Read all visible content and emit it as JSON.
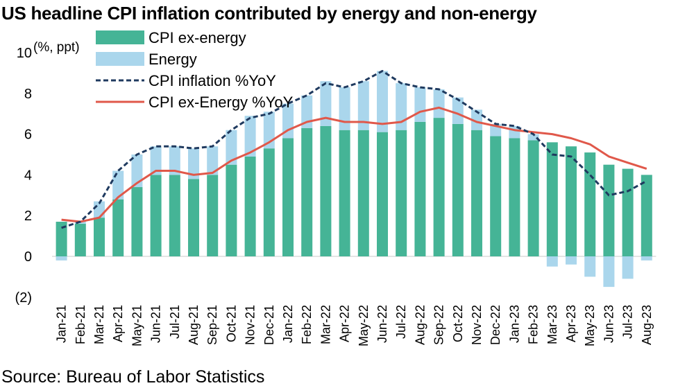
{
  "chart_data": {
    "type": "bar",
    "title": "US headline CPI inflation contributed by energy and non-energy",
    "ylabel": "(%, ppt)",
    "xlabel": "",
    "ylim": [
      -2,
      10
    ],
    "yticks": [
      -2,
      0,
      2,
      4,
      6,
      8,
      10
    ],
    "ytick_labels": [
      "(2)",
      "0",
      "2",
      "4",
      "6",
      "8",
      "10"
    ],
    "stacked": true,
    "grid": false,
    "legend_position": "top-left",
    "colors": {
      "ex_energy": "#45b496",
      "energy": "#aad6ec",
      "cpi_line": "#1f3a5f",
      "ex_energy_line": "#e0584a"
    },
    "categories": [
      "Jan-21",
      "Feb-21",
      "Mar-21",
      "Apr-21",
      "May-21",
      "Jun-21",
      "Jul-21",
      "Aug-21",
      "Sep-21",
      "Oct-21",
      "Nov-21",
      "Dec-21",
      "Jan-22",
      "Feb-22",
      "Mar-22",
      "Apr-22",
      "May-22",
      "Jun-22",
      "Jul-22",
      "Aug-22",
      "Sep-22",
      "Oct-22",
      "Nov-22",
      "Dec-22",
      "Jan-23",
      "Feb-23",
      "Mar-23",
      "Apr-23",
      "May-23",
      "Jun-23",
      "Jul-23",
      "Aug-23"
    ],
    "series": [
      {
        "name": "CPI ex-energy",
        "kind": "bar",
        "values": [
          1.7,
          1.6,
          1.9,
          2.8,
          3.4,
          4.0,
          4.0,
          3.8,
          4.0,
          4.5,
          4.9,
          5.3,
          5.8,
          6.3,
          6.4,
          6.2,
          6.2,
          6.1,
          6.2,
          6.6,
          6.8,
          6.5,
          6.2,
          5.9,
          5.8,
          5.7,
          5.6,
          5.4,
          5.1,
          4.5,
          4.3,
          4.0
        ]
      },
      {
        "name": "Energy",
        "kind": "bar",
        "values": [
          -0.2,
          0.1,
          0.8,
          1.4,
          1.6,
          1.4,
          1.4,
          1.5,
          1.4,
          1.7,
          2.0,
          1.8,
          1.7,
          1.6,
          2.2,
          2.1,
          2.4,
          3.0,
          2.3,
          1.7,
          1.4,
          1.3,
          1.0,
          0.6,
          0.6,
          0.3,
          -0.5,
          -0.4,
          -1.0,
          -1.5,
          -1.1,
          -0.2
        ]
      },
      {
        "name": "CPI inflation %YoY",
        "kind": "line",
        "style": "dashed",
        "values": [
          1.4,
          1.7,
          2.6,
          4.2,
          5.0,
          5.4,
          5.4,
          5.3,
          5.4,
          6.2,
          6.8,
          7.0,
          7.5,
          7.9,
          8.5,
          8.3,
          8.6,
          9.1,
          8.5,
          8.3,
          8.2,
          7.7,
          7.1,
          6.5,
          6.4,
          6.0,
          5.0,
          4.9,
          4.0,
          3.0,
          3.2,
          3.7
        ]
      },
      {
        "name": "CPI ex-Energy %YoY",
        "kind": "line",
        "style": "solid",
        "values": [
          1.8,
          1.7,
          1.9,
          2.9,
          3.6,
          4.2,
          4.2,
          4.0,
          4.1,
          4.7,
          5.1,
          5.6,
          6.2,
          6.6,
          6.8,
          6.6,
          6.6,
          6.5,
          6.6,
          7.1,
          7.3,
          7.0,
          6.6,
          6.4,
          6.2,
          6.1,
          6.0,
          5.8,
          5.5,
          4.9,
          4.6,
          4.3
        ]
      }
    ]
  },
  "source": "Source: Bureau of Labor Statistics"
}
